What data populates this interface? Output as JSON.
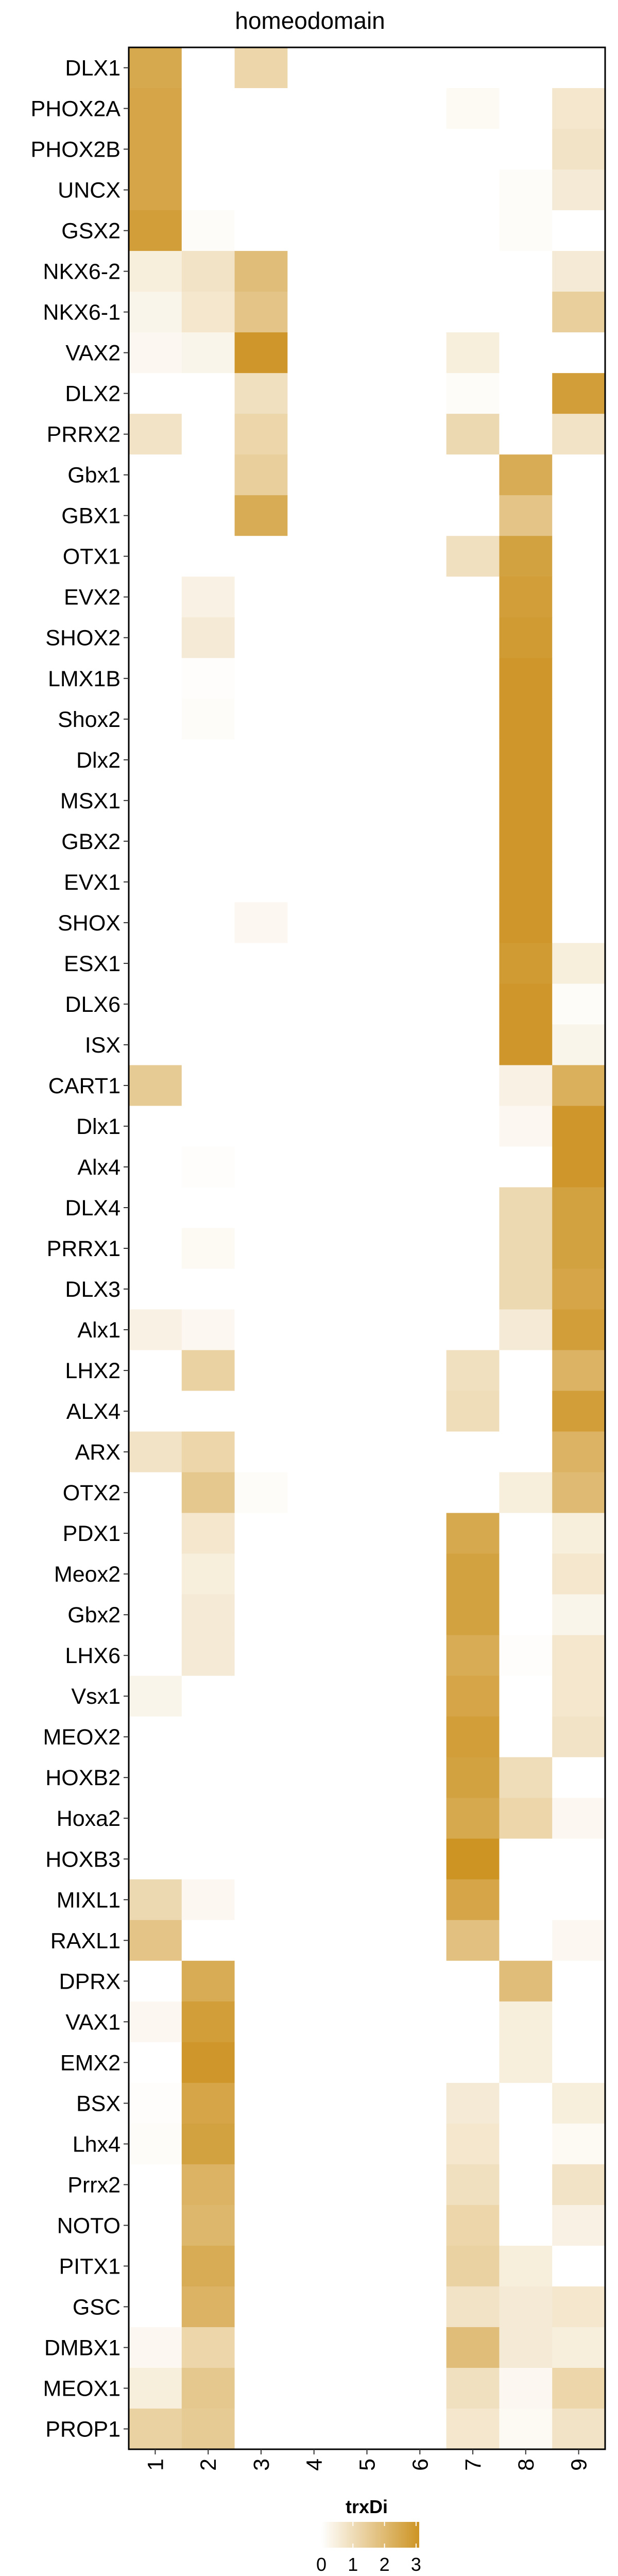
{
  "chart_data": {
    "type": "heatmap",
    "title": "homeodomain",
    "columns": [
      "1",
      "2",
      "3",
      "4",
      "5",
      "6",
      "7",
      "8",
      "9"
    ],
    "rows": [
      "DLX1",
      "PHOX2A",
      "PHOX2B",
      "UNCX",
      "GSX2",
      "NKX6-2",
      "NKX6-1",
      "VAX2",
      "DLX2",
      "PRRX2",
      "Gbx1",
      "GBX1",
      "OTX1",
      "EVX2",
      "SHOX2",
      "LMX1B",
      "Shox2",
      "Dlx2",
      "MSX1",
      "GBX2",
      "EVX1",
      "SHOX",
      "ESX1",
      "DLX6",
      "ISX",
      "CART1",
      "Dlx1",
      "Alx4",
      "DLX4",
      "PRRX1",
      "DLX3",
      "Alx1",
      "LHX2",
      "ALX4",
      "ARX",
      "OTX2",
      "PDX1",
      "Meox2",
      "Gbx2",
      "LHX6",
      "Vsx1",
      "MEOX2",
      "HOXB2",
      "Hoxa2",
      "HOXB3",
      "MIXL1",
      "RAXL1",
      "DPRX",
      "VAX1",
      "EMX2",
      "BSX",
      "Lhx4",
      "Prrx2",
      "NOTO",
      "PITX1",
      "GSC",
      "DMBX1",
      "MEOX1",
      "PROP1"
    ],
    "values": [
      [
        2.5,
        0,
        1.2,
        0,
        0,
        0,
        0,
        0,
        0
      ],
      [
        2.6,
        0,
        0,
        0,
        0,
        0,
        0.15,
        0,
        0.7
      ],
      [
        2.6,
        0,
        0,
        0,
        0,
        0,
        0,
        0,
        0.8
      ],
      [
        2.6,
        0,
        0,
        0,
        0,
        0,
        0,
        0.1,
        0.6
      ],
      [
        2.8,
        0.1,
        0,
        0,
        0,
        0,
        0,
        0.1,
        0
      ],
      [
        0.5,
        0.8,
        1.9,
        0,
        0,
        0,
        0,
        0,
        0.6
      ],
      [
        0.3,
        0.7,
        1.7,
        0,
        0,
        0,
        0,
        0,
        1.4
      ],
      [
        0.2,
        0.3,
        3.0,
        0,
        0,
        0,
        0.5,
        0,
        0
      ],
      [
        0,
        0,
        0.9,
        0,
        0,
        0,
        0.1,
        0,
        2.8
      ],
      [
        0.8,
        0,
        1.2,
        0,
        0,
        0,
        1.1,
        0,
        0.8
      ],
      [
        0,
        0,
        1.4,
        0,
        0,
        0,
        0,
        2.4,
        0
      ],
      [
        0,
        0,
        2.4,
        0,
        0,
        0,
        0,
        1.7,
        0
      ],
      [
        0,
        0,
        0,
        0,
        0,
        0,
        0.9,
        2.7,
        0
      ],
      [
        0,
        0.4,
        0,
        0,
        0,
        0,
        0,
        2.8,
        0
      ],
      [
        0,
        0.6,
        0,
        0,
        0,
        0,
        0,
        2.9,
        0
      ],
      [
        0,
        0.05,
        0,
        0,
        0,
        0,
        0,
        3.0,
        0
      ],
      [
        0,
        0.1,
        0,
        0,
        0,
        0,
        0,
        3.0,
        0
      ],
      [
        0,
        0,
        0,
        0,
        0,
        0,
        0,
        3.0,
        0
      ],
      [
        0,
        0,
        0,
        0,
        0,
        0,
        0,
        3.0,
        0
      ],
      [
        0,
        0,
        0,
        0,
        0,
        0,
        0,
        3.0,
        0
      ],
      [
        0,
        0,
        0,
        0,
        0,
        0,
        0,
        3.0,
        0
      ],
      [
        0,
        0,
        0.2,
        0,
        0,
        0,
        0,
        3.0,
        0
      ],
      [
        0,
        0,
        0,
        0,
        0,
        0,
        0,
        2.9,
        0.5
      ],
      [
        0,
        0,
        0,
        0,
        0,
        0,
        0,
        3.0,
        0.1
      ],
      [
        0,
        0,
        0,
        0,
        0,
        0,
        0,
        3.0,
        0.3
      ],
      [
        1.5,
        0,
        0,
        0,
        0,
        0,
        0,
        0.4,
        2.3
      ],
      [
        0,
        0,
        0,
        0,
        0,
        0,
        0,
        0.2,
        3.0
      ],
      [
        0,
        0.05,
        0,
        0,
        0,
        0,
        0,
        0,
        3.0
      ],
      [
        0,
        0,
        0,
        0,
        0,
        0,
        0,
        1.1,
        2.7
      ],
      [
        0,
        0.15,
        0,
        0,
        0,
        0,
        0,
        1.1,
        2.7
      ],
      [
        0,
        0,
        0,
        0,
        0,
        0,
        0,
        1.1,
        2.6
      ],
      [
        0.4,
        0.2,
        0,
        0,
        0,
        0,
        0,
        0.6,
        2.8
      ],
      [
        0,
        1.3,
        0,
        0,
        0,
        0,
        0.9,
        0,
        2.2
      ],
      [
        0,
        0,
        0,
        0,
        0,
        0,
        1.0,
        0,
        2.8
      ],
      [
        0.8,
        1.2,
        0,
        0,
        0,
        0,
        0,
        0,
        2.2
      ],
      [
        0,
        1.6,
        0.1,
        0,
        0,
        0,
        0,
        0.5,
        2.0
      ],
      [
        0,
        0.7,
        0,
        0,
        0,
        0,
        2.5,
        0,
        0.5
      ],
      [
        0,
        0.5,
        0,
        0,
        0,
        0,
        2.7,
        0,
        0.7
      ],
      [
        0,
        0.6,
        0,
        0,
        0,
        0,
        2.7,
        0,
        0.3
      ],
      [
        0,
        0.6,
        0,
        0,
        0,
        0,
        2.4,
        0.05,
        0.7
      ],
      [
        0.3,
        0,
        0,
        0,
        0,
        0,
        2.6,
        0,
        0.7
      ],
      [
        0,
        0,
        0,
        0,
        0,
        0,
        2.8,
        0,
        0.8
      ],
      [
        0,
        0,
        0,
        0,
        0,
        0,
        2.7,
        1.0,
        0
      ],
      [
        0,
        0,
        0,
        0,
        0,
        0,
        2.5,
        1.2,
        0.2
      ],
      [
        0,
        0,
        0,
        0,
        0,
        0,
        3.1,
        0,
        0
      ],
      [
        1.1,
        0.2,
        0,
        0,
        0,
        0,
        2.6,
        0,
        0
      ],
      [
        1.7,
        0,
        0,
        0,
        0,
        0,
        1.8,
        0,
        0.2
      ],
      [
        0,
        2.4,
        0,
        0,
        0,
        0,
        0,
        1.9,
        0
      ],
      [
        0.2,
        2.8,
        0,
        0,
        0,
        0,
        0,
        0.5,
        0
      ],
      [
        0,
        3.0,
        0,
        0,
        0,
        0,
        0,
        0.5,
        0
      ],
      [
        0.05,
        2.6,
        0,
        0,
        0,
        0,
        0.6,
        0,
        0.5
      ],
      [
        0.1,
        2.7,
        0,
        0,
        0,
        0,
        0.7,
        0,
        0.15
      ],
      [
        0,
        2.2,
        0,
        0,
        0,
        0,
        0.9,
        0,
        0.8
      ],
      [
        0,
        2.1,
        0,
        0,
        0,
        0,
        1.2,
        0,
        0.4
      ],
      [
        0,
        2.4,
        0,
        0,
        0,
        0,
        1.3,
        0.5,
        0
      ],
      [
        0,
        2.2,
        0,
        0,
        0,
        0,
        0.8,
        0.6,
        0.7
      ],
      [
        0.2,
        1.2,
        0,
        0,
        0,
        0,
        1.9,
        0.6,
        0.5
      ],
      [
        0.5,
        1.6,
        0,
        0,
        0,
        0,
        0.9,
        0.2,
        1.2
      ],
      [
        1.3,
        1.5,
        0,
        0,
        0,
        0,
        0.7,
        0.15,
        0.8
      ]
    ],
    "color_scale": {
      "low": "#ffffff",
      "high": "#cd9424",
      "min": 0,
      "max": 3.1
    },
    "legend": {
      "title": "trxDi",
      "ticks": [
        "0",
        "1",
        "2",
        "3"
      ],
      "placement": "bottom"
    },
    "grid": false
  }
}
